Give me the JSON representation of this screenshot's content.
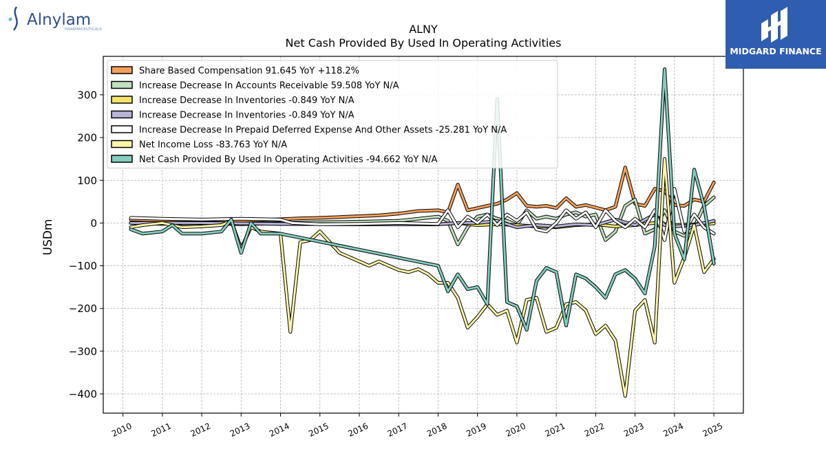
{
  "header": {
    "company_logo_text": "Alnylam",
    "company_logo_subtext": "PHARMACEUTICALS",
    "publisher_logo_text": "MIDGARD FINANCE"
  },
  "colors": {
    "share_based": "#f5a05a",
    "accounts_receivable": "#c2e0bf",
    "inventories_1": "#f5e468",
    "inventories_2": "#b7b4d8",
    "prepaid": "#ffffff",
    "net_income": "#fdf7a8",
    "net_cash": "#84cdbf",
    "publisher_bg": "#2f5db0"
  },
  "chart_data": {
    "type": "line",
    "title": "ALNY",
    "subtitle": "Net Cash Provided By Used In Operating Activities",
    "xlabel": "",
    "ylabel": "USDm",
    "xlim": [
      2009.5,
      2025.75
    ],
    "ylim": [
      -445,
      390
    ],
    "x_ticks": [
      2010,
      2011,
      2012,
      2013,
      2014,
      2015,
      2016,
      2017,
      2018,
      2019,
      2020,
      2021,
      2022,
      2023,
      2024,
      2025
    ],
    "y_ticks": [
      300,
      200,
      100,
      0,
      -100,
      -200,
      -300,
      -400
    ],
    "y_tick_labels": [
      "300",
      "200",
      "100",
      "0",
      "−100",
      "−200",
      "−300",
      "−400"
    ],
    "grid": true,
    "legend_position": "top-left",
    "series": [
      {
        "name": "Share Based Compensation  91.645 YoY +118.2%",
        "color": "#f5a05a",
        "points": [
          [
            2010.2,
            8
          ],
          [
            2011,
            6
          ],
          [
            2012,
            8
          ],
          [
            2013,
            5
          ],
          [
            2013.8,
            8
          ],
          [
            2014.5,
            11
          ],
          [
            2015,
            12
          ],
          [
            2015.5,
            14
          ],
          [
            2016,
            16
          ],
          [
            2016.5,
            18
          ],
          [
            2017,
            22
          ],
          [
            2017.5,
            28
          ],
          [
            2018,
            30
          ],
          [
            2018.25,
            25
          ],
          [
            2018.5,
            90
          ],
          [
            2018.75,
            30
          ],
          [
            2019,
            35
          ],
          [
            2019.25,
            40
          ],
          [
            2019.5,
            45
          ],
          [
            2019.75,
            55
          ],
          [
            2020,
            70
          ],
          [
            2020.25,
            40
          ],
          [
            2020.5,
            38
          ],
          [
            2020.75,
            40
          ],
          [
            2021,
            35
          ],
          [
            2021.25,
            58
          ],
          [
            2021.5,
            38
          ],
          [
            2021.75,
            42
          ],
          [
            2022,
            36
          ],
          [
            2022.25,
            30
          ],
          [
            2022.5,
            38
          ],
          [
            2022.75,
            130
          ],
          [
            2023,
            45
          ],
          [
            2023.25,
            40
          ],
          [
            2023.5,
            80
          ],
          [
            2023.75,
            75
          ],
          [
            2024,
            42
          ],
          [
            2024.25,
            40
          ],
          [
            2024.5,
            55
          ],
          [
            2024.75,
            50
          ],
          [
            2025,
            95
          ]
        ]
      },
      {
        "name": "Increase Decrease In Accounts Receivable  59.508 YoY N/A",
        "color": "#c2e0bf",
        "points": [
          [
            2010.2,
            0
          ],
          [
            2011,
            -2
          ],
          [
            2012,
            0
          ],
          [
            2013,
            -3
          ],
          [
            2014,
            0
          ],
          [
            2015,
            2
          ],
          [
            2016,
            3
          ],
          [
            2017,
            5
          ],
          [
            2018,
            15
          ],
          [
            2018.25,
            5
          ],
          [
            2018.5,
            -50
          ],
          [
            2018.75,
            -10
          ],
          [
            2019,
            15
          ],
          [
            2019.25,
            20
          ],
          [
            2019.5,
            10
          ],
          [
            2019.75,
            5
          ],
          [
            2020,
            -5
          ],
          [
            2020.25,
            30
          ],
          [
            2020.5,
            10
          ],
          [
            2020.75,
            15
          ],
          [
            2021,
            10
          ],
          [
            2021.25,
            20
          ],
          [
            2021.5,
            25
          ],
          [
            2021.75,
            15
          ],
          [
            2022,
            20
          ],
          [
            2022.25,
            -40
          ],
          [
            2022.5,
            -20
          ],
          [
            2022.75,
            40
          ],
          [
            2023,
            55
          ],
          [
            2023.25,
            -25
          ],
          [
            2023.5,
            -15
          ],
          [
            2023.75,
            30
          ],
          [
            2024,
            -20
          ],
          [
            2024.25,
            -30
          ],
          [
            2024.5,
            -10
          ],
          [
            2024.75,
            40
          ],
          [
            2025,
            60
          ]
        ]
      },
      {
        "name": "Increase Decrease In Inventories  -0.849 YoY N/A",
        "color": "#f5e468",
        "points": [
          [
            2010.2,
            0
          ],
          [
            2012,
            0
          ],
          [
            2014,
            -2
          ],
          [
            2016,
            -3
          ],
          [
            2018,
            -3
          ],
          [
            2018.5,
            0
          ],
          [
            2019,
            -5
          ],
          [
            2019.5,
            -3
          ],
          [
            2020,
            -5
          ],
          [
            2020.5,
            -8
          ],
          [
            2021,
            -10
          ],
          [
            2021.5,
            -5
          ],
          [
            2022,
            -3
          ],
          [
            2022.5,
            -8
          ],
          [
            2023,
            -5
          ],
          [
            2023.5,
            0
          ],
          [
            2024,
            -5
          ],
          [
            2024.5,
            -3
          ],
          [
            2025,
            -1
          ]
        ]
      },
      {
        "name": "Increase Decrease In Inventories  -0.849 YoY N/A",
        "color": "#b7b4d8",
        "points": [
          [
            2010.2,
            0
          ],
          [
            2012,
            0
          ],
          [
            2014,
            -2
          ],
          [
            2016,
            -3
          ],
          [
            2018,
            -3
          ],
          [
            2018.5,
            0
          ],
          [
            2019,
            0
          ],
          [
            2019.5,
            5
          ],
          [
            2020,
            -10
          ],
          [
            2020.5,
            -5
          ],
          [
            2021,
            -8
          ],
          [
            2021.5,
            -3
          ],
          [
            2022,
            -5
          ],
          [
            2022.5,
            8
          ],
          [
            2023,
            -5
          ],
          [
            2023.5,
            20
          ],
          [
            2023.75,
            -5
          ],
          [
            2024,
            -8
          ],
          [
            2024.5,
            -5
          ],
          [
            2025,
            5
          ]
        ]
      },
      {
        "name": "Increase Decrease In Prepaid Deferred Expense And Other Assets  -25.281 YoY N/A",
        "color": "#ffffff",
        "points": [
          [
            2010.2,
            12
          ],
          [
            2011,
            10
          ],
          [
            2012,
            8
          ],
          [
            2013,
            10
          ],
          [
            2014,
            8
          ],
          [
            2014.3,
            0
          ],
          [
            2015,
            -3
          ],
          [
            2016,
            -2
          ],
          [
            2017,
            0
          ],
          [
            2018,
            -2
          ],
          [
            2018.25,
            30
          ],
          [
            2018.5,
            -10
          ],
          [
            2018.75,
            15
          ],
          [
            2019,
            0
          ],
          [
            2019.25,
            20
          ],
          [
            2019.5,
            -5
          ],
          [
            2019.75,
            20
          ],
          [
            2020,
            5
          ],
          [
            2020.25,
            25
          ],
          [
            2020.5,
            -15
          ],
          [
            2020.75,
            -20
          ],
          [
            2021,
            0
          ],
          [
            2021.25,
            30
          ],
          [
            2021.5,
            10
          ],
          [
            2021.75,
            25
          ],
          [
            2022,
            -10
          ],
          [
            2022.25,
            30
          ],
          [
            2022.5,
            5
          ],
          [
            2022.75,
            -10
          ],
          [
            2023,
            10
          ],
          [
            2023.25,
            -10
          ],
          [
            2023.5,
            30
          ],
          [
            2023.75,
            -40
          ],
          [
            2024,
            80
          ],
          [
            2024.25,
            -20
          ],
          [
            2024.5,
            20
          ],
          [
            2024.75,
            -10
          ],
          [
            2025,
            -25
          ]
        ]
      },
      {
        "name": "Net Income Loss  -83.763 YoY N/A",
        "color": "#fdf7a8",
        "points": [
          [
            2010.2,
            -10
          ],
          [
            2010.5,
            -5
          ],
          [
            2011,
            0
          ],
          [
            2011.5,
            -10
          ],
          [
            2012,
            -8
          ],
          [
            2012.5,
            -5
          ],
          [
            2012.75,
            5
          ],
          [
            2013,
            -60
          ],
          [
            2013.25,
            -10
          ],
          [
            2013.5,
            -20
          ],
          [
            2014,
            -25
          ],
          [
            2014.25,
            -255
          ],
          [
            2014.5,
            -45
          ],
          [
            2014.75,
            -40
          ],
          [
            2015,
            -20
          ],
          [
            2015.5,
            -70
          ],
          [
            2016,
            -90
          ],
          [
            2016.25,
            -100
          ],
          [
            2016.5,
            -90
          ],
          [
            2016.75,
            -100
          ],
          [
            2017,
            -110
          ],
          [
            2017.25,
            -115
          ],
          [
            2017.5,
            -108
          ],
          [
            2017.75,
            -120
          ],
          [
            2018,
            -140
          ],
          [
            2018.25,
            -140
          ],
          [
            2018.5,
            -175
          ],
          [
            2018.75,
            -245
          ],
          [
            2019,
            -220
          ],
          [
            2019.25,
            -190
          ],
          [
            2019.5,
            -215
          ],
          [
            2019.75,
            -205
          ],
          [
            2020,
            -280
          ],
          [
            2020.25,
            -180
          ],
          [
            2020.5,
            -175
          ],
          [
            2020.75,
            -255
          ],
          [
            2021,
            -245
          ],
          [
            2021.25,
            -190
          ],
          [
            2021.5,
            -185
          ],
          [
            2021.75,
            -205
          ],
          [
            2022,
            -260
          ],
          [
            2022.25,
            -240
          ],
          [
            2022.5,
            -275
          ],
          [
            2022.75,
            -405
          ],
          [
            2023,
            -205
          ],
          [
            2023.25,
            -180
          ],
          [
            2023.5,
            -280
          ],
          [
            2023.75,
            150
          ],
          [
            2024,
            -140
          ],
          [
            2024.25,
            -80
          ],
          [
            2024.5,
            -5
          ],
          [
            2024.75,
            -115
          ],
          [
            2025,
            -84
          ]
        ]
      },
      {
        "name": "Net Cash Provided By Used In Operating Activities  -94.662 YoY N/A",
        "color": "#84cdbf",
        "points": [
          [
            2010.2,
            -15
          ],
          [
            2010.5,
            -25
          ],
          [
            2011,
            -20
          ],
          [
            2011.25,
            -5
          ],
          [
            2011.5,
            -25
          ],
          [
            2012,
            -25
          ],
          [
            2012.5,
            -20
          ],
          [
            2012.75,
            8
          ],
          [
            2013,
            -70
          ],
          [
            2013.25,
            0
          ],
          [
            2013.5,
            -25
          ],
          [
            2014,
            -25
          ],
          [
            2018,
            -100
          ],
          [
            2018.25,
            -160
          ],
          [
            2018.5,
            -120
          ],
          [
            2018.75,
            -155
          ],
          [
            2019,
            -150
          ],
          [
            2019.25,
            -190
          ],
          [
            2019.5,
            290
          ],
          [
            2019.75,
            -185
          ],
          [
            2020,
            -195
          ],
          [
            2020.25,
            -250
          ],
          [
            2020.5,
            -135
          ],
          [
            2020.75,
            -105
          ],
          [
            2021,
            -115
          ],
          [
            2021.25,
            -240
          ],
          [
            2021.5,
            -120
          ],
          [
            2021.75,
            -130
          ],
          [
            2022,
            -150
          ],
          [
            2022.25,
            -175
          ],
          [
            2022.5,
            -120
          ],
          [
            2022.75,
            -110
          ],
          [
            2023,
            -130
          ],
          [
            2023.25,
            -165
          ],
          [
            2023.5,
            -55
          ],
          [
            2023.75,
            360
          ],
          [
            2024,
            -25
          ],
          [
            2024.25,
            -85
          ],
          [
            2024.5,
            125
          ],
          [
            2024.75,
            40
          ],
          [
            2025,
            -95
          ]
        ]
      }
    ]
  }
}
